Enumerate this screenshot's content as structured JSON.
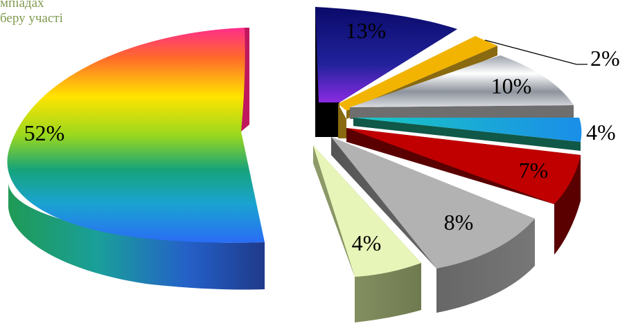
{
  "legend_fragments": [
    "мпіадах",
    "беру участі"
  ],
  "chart_data": {
    "type": "pie",
    "style": "3d-exploded",
    "title": "",
    "slices": [
      {
        "label": "13%",
        "value": 13,
        "color": "#10107a"
      },
      {
        "label": "2%",
        "value": 2,
        "color": "#f2b400"
      },
      {
        "label": "10%",
        "value": 10,
        "color": "#c4c6cc"
      },
      {
        "label": "4%",
        "value": 4,
        "color": "#1fc7cf"
      },
      {
        "label": "7%",
        "value": 7,
        "color": "#c00000"
      },
      {
        "label": "8%",
        "value": 8,
        "color": "#b2b2b2"
      },
      {
        "label": "4%",
        "value": 4,
        "color": "#e8f5b8"
      },
      {
        "label": "52%",
        "value": 52,
        "color": "rainbow"
      }
    ]
  }
}
